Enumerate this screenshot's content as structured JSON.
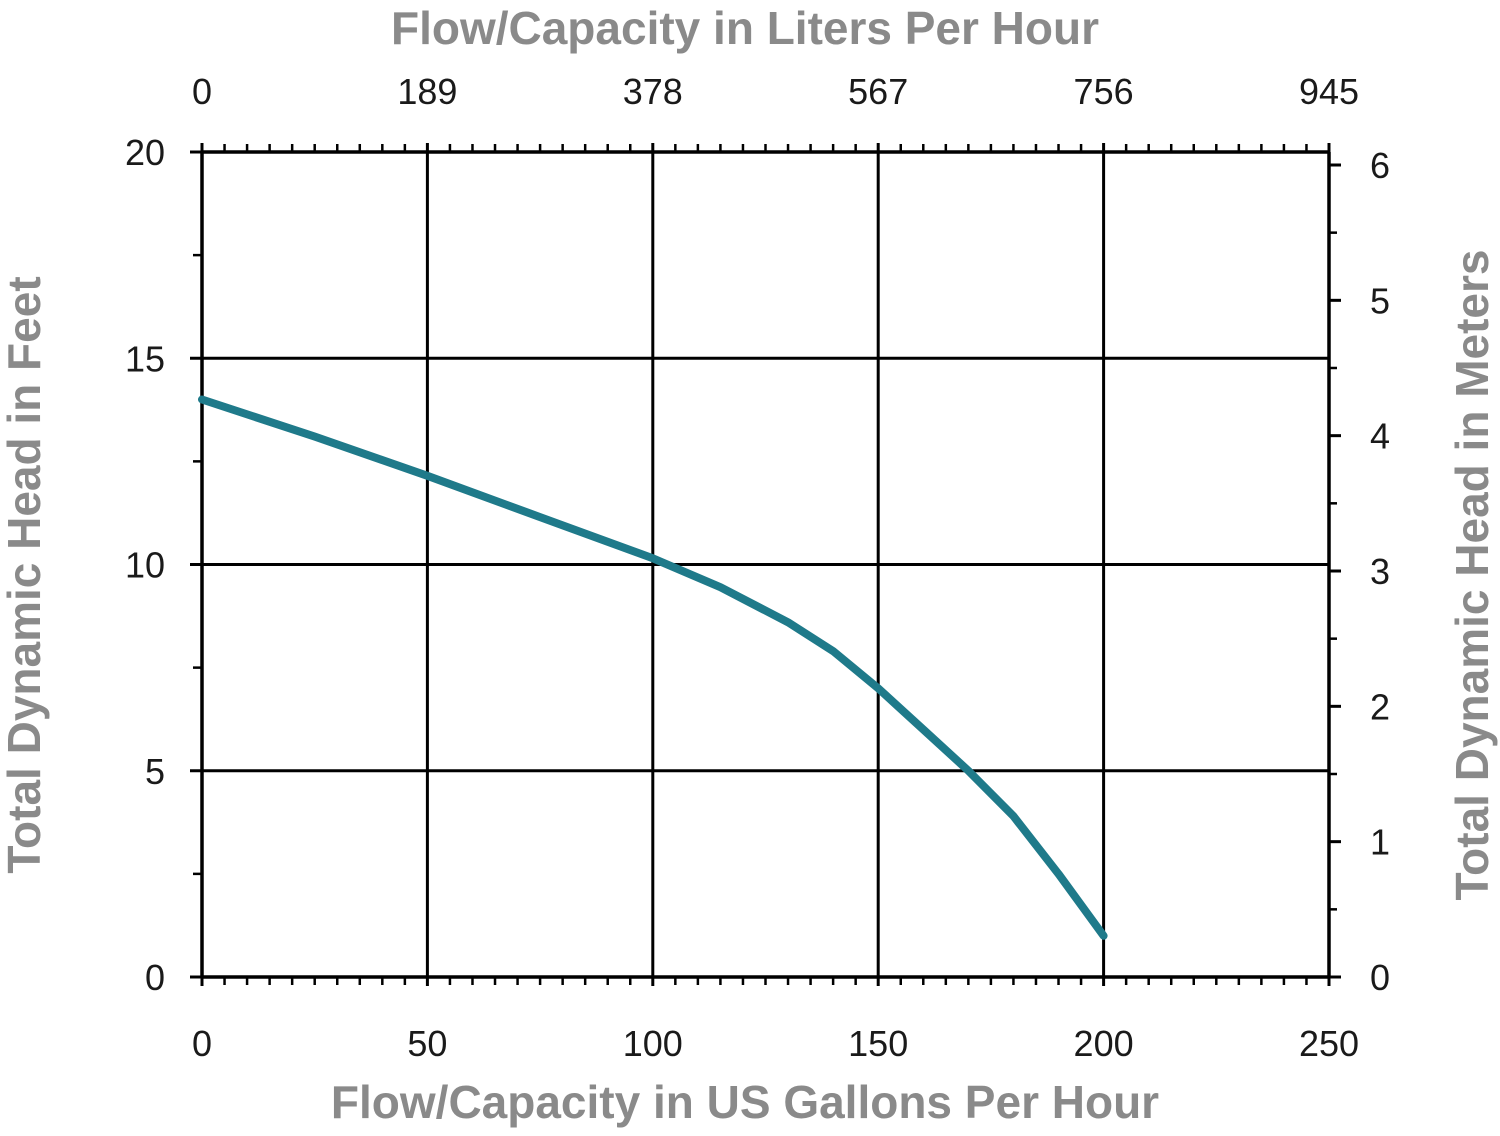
{
  "chart_data": {
    "type": "line",
    "title": "",
    "x_top_label": "Flow/Capacity in Liters Per Hour",
    "x_bottom_label": "Flow/Capacity in US Gallons Per Hour",
    "y_left_label": "Total Dynamic Head in Feet",
    "y_right_label": "Total Dynamic Head in Meters",
    "x_bottom_ticks": [
      "0",
      "50",
      "100",
      "150",
      "200",
      "250"
    ],
    "x_top_ticks": [
      "0",
      "189",
      "378",
      "567",
      "756",
      "945"
    ],
    "y_left_ticks": [
      "0",
      "5",
      "10",
      "15",
      "20"
    ],
    "y_right_ticks": [
      "0",
      "1",
      "2",
      "3",
      "4",
      "5",
      "6"
    ],
    "xlim": [
      0,
      250
    ],
    "ylim": [
      0,
      20
    ],
    "y_right_lim": [
      0,
      6.096
    ],
    "grid": true,
    "series": [
      {
        "color": "#1f7a8a",
        "x": [
          0,
          25,
          50,
          75,
          100,
          115,
          130,
          140,
          150,
          160,
          170,
          180,
          190,
          200
        ],
        "y": [
          14.0,
          13.1,
          12.15,
          11.15,
          10.15,
          9.45,
          8.6,
          7.9,
          7.0,
          6.0,
          5.0,
          3.9,
          2.5,
          1.0
        ]
      }
    ],
    "colors": {
      "line": "#1f7a8a",
      "grid": "#000000",
      "axis_title": "#8a8a8a",
      "tick_label": "#1a1a1a"
    }
  }
}
